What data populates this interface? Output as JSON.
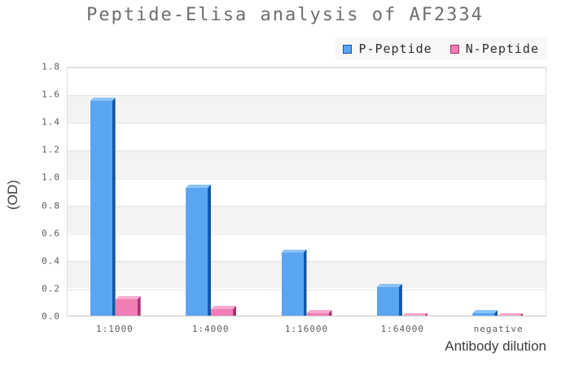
{
  "title": "Peptide-Elisa analysis of AF2334",
  "chart_data": {
    "type": "bar",
    "title": "Peptide-Elisa analysis of AF2334",
    "categories": [
      "1:1000",
      "1:4000",
      "1:16000",
      "1:64000",
      "negative"
    ],
    "series": [
      {
        "name": "P-Peptide",
        "values": [
          1.58,
          0.95,
          0.48,
          0.23,
          0.04
        ],
        "color": "#59a5f2",
        "color_dark": "#1258a6",
        "color_light": "#8cc3f5"
      },
      {
        "name": "N-Peptide",
        "values": [
          0.14,
          0.07,
          0.04,
          0.02,
          0.02
        ],
        "color": "#f07db4",
        "color_dark": "#aa3273",
        "color_light": "#f7aad0"
      }
    ],
    "xlabel": "Antibody dilution",
    "ylabel": "(OD)",
    "ylim": [
      0,
      1.8
    ],
    "yticks": [
      0.0,
      0.2,
      0.4,
      0.6,
      0.8,
      1.0,
      1.2,
      1.4,
      1.6,
      1.8
    ],
    "grid": true,
    "band_colors": [
      "#ffffff",
      "#f3f3f3"
    ],
    "legend_position": "top-right"
  }
}
